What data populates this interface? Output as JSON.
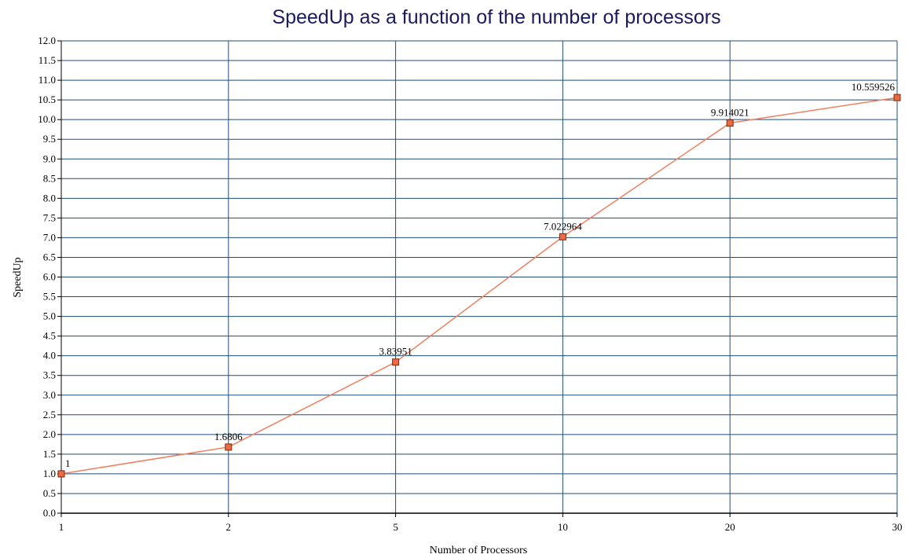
{
  "chart_data": {
    "type": "line",
    "title": "SpeedUp as a function of the number of processors",
    "xlabel": "Number of Processors",
    "ylabel": "SpeedUp",
    "categories": [
      "1",
      "2",
      "5",
      "10",
      "20",
      "30"
    ],
    "series": [
      {
        "values": [
          1,
          1.6806,
          3.83951,
          7.022964,
          9.914021,
          10.559526
        ],
        "labels": [
          "1",
          "1.6806",
          "3.83951",
          "7.022964",
          "9.914021",
          "10.559526"
        ]
      }
    ],
    "ylim": [
      0,
      12
    ],
    "ytick_step": 0.5,
    "grid": true,
    "colors": {
      "line": "#f08060",
      "marker_fill": "#ee6a40",
      "marker_stroke": "#7a2a10",
      "grid": "#1f4e79",
      "title": "#1a1a5e"
    }
  }
}
